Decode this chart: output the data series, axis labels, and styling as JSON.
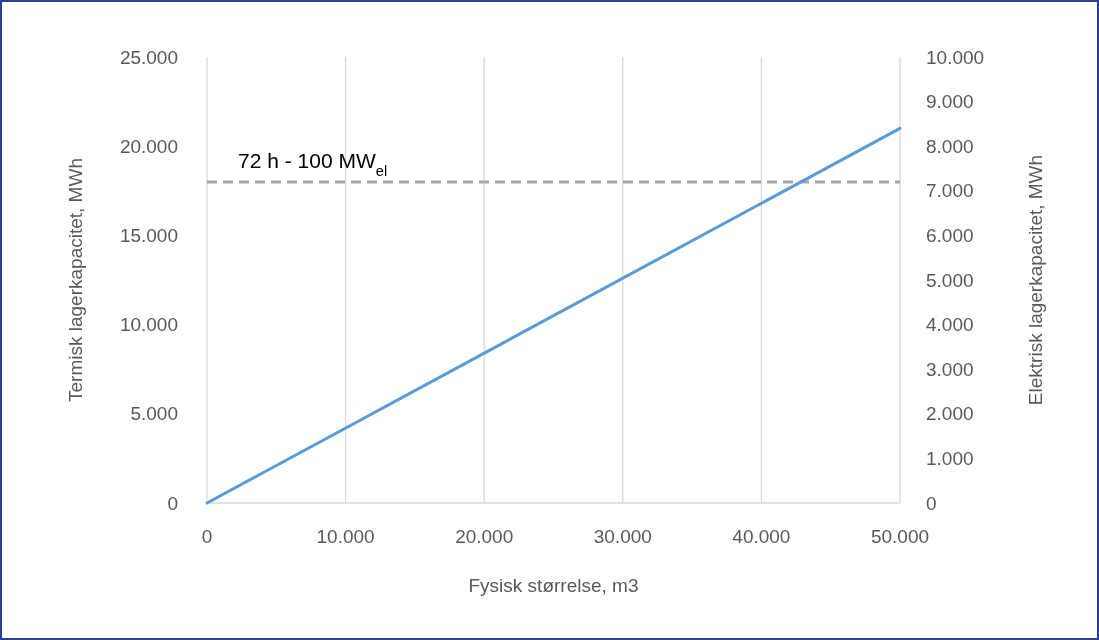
{
  "chart_data": {
    "type": "line",
    "xlabel": "Fysisk størrelse, m3",
    "ylabel": "Termisk lagerkapacitet, MWh",
    "y2label": "Elektrisk lagerkapacitet, MWh",
    "x": [
      0,
      50000
    ],
    "series": [
      {
        "color": "#5b9bd5",
        "values": [
          0,
          21000
        ]
      }
    ],
    "xlim": [
      0,
      50000
    ],
    "xticks": [
      {
        "value": 0,
        "label": "0"
      },
      {
        "value": 10000,
        "label": "10.000"
      },
      {
        "value": 20000,
        "label": "20.000"
      },
      {
        "value": 30000,
        "label": "30.000"
      },
      {
        "value": 40000,
        "label": "40.000"
      },
      {
        "value": 50000,
        "label": "50.000"
      }
    ],
    "ylim": [
      0,
      25000
    ],
    "yticks": [
      {
        "value": 0,
        "label": "0"
      },
      {
        "value": 5000,
        "label": "5.000"
      },
      {
        "value": 10000,
        "label": "10.000"
      },
      {
        "value": 15000,
        "label": "15.000"
      },
      {
        "value": 20000,
        "label": "20.000"
      },
      {
        "value": 25000,
        "label": "25.000"
      }
    ],
    "y2lim": [
      0,
      10000
    ],
    "y2ticks": [
      {
        "value": 0,
        "label": "0"
      },
      {
        "value": 1000,
        "label": "1.000"
      },
      {
        "value": 2000,
        "label": "2.000"
      },
      {
        "value": 3000,
        "label": "3.000"
      },
      {
        "value": 4000,
        "label": "4.000"
      },
      {
        "value": 5000,
        "label": "5.000"
      },
      {
        "value": 6000,
        "label": "6.000"
      },
      {
        "value": 7000,
        "label": "7.000"
      },
      {
        "value": 8000,
        "label": "8.000"
      },
      {
        "value": 9000,
        "label": "9.000"
      },
      {
        "value": 10000,
        "label": "10.000"
      }
    ],
    "ref_lines": [
      {
        "axis": "y",
        "value": 18000,
        "label": "72 h - 100 MW$_{el}$",
        "color": "#a5a5a5",
        "line_style": "dashed"
      }
    ],
    "grid": "x",
    "marker": "none",
    "line_style": "solid"
  }
}
